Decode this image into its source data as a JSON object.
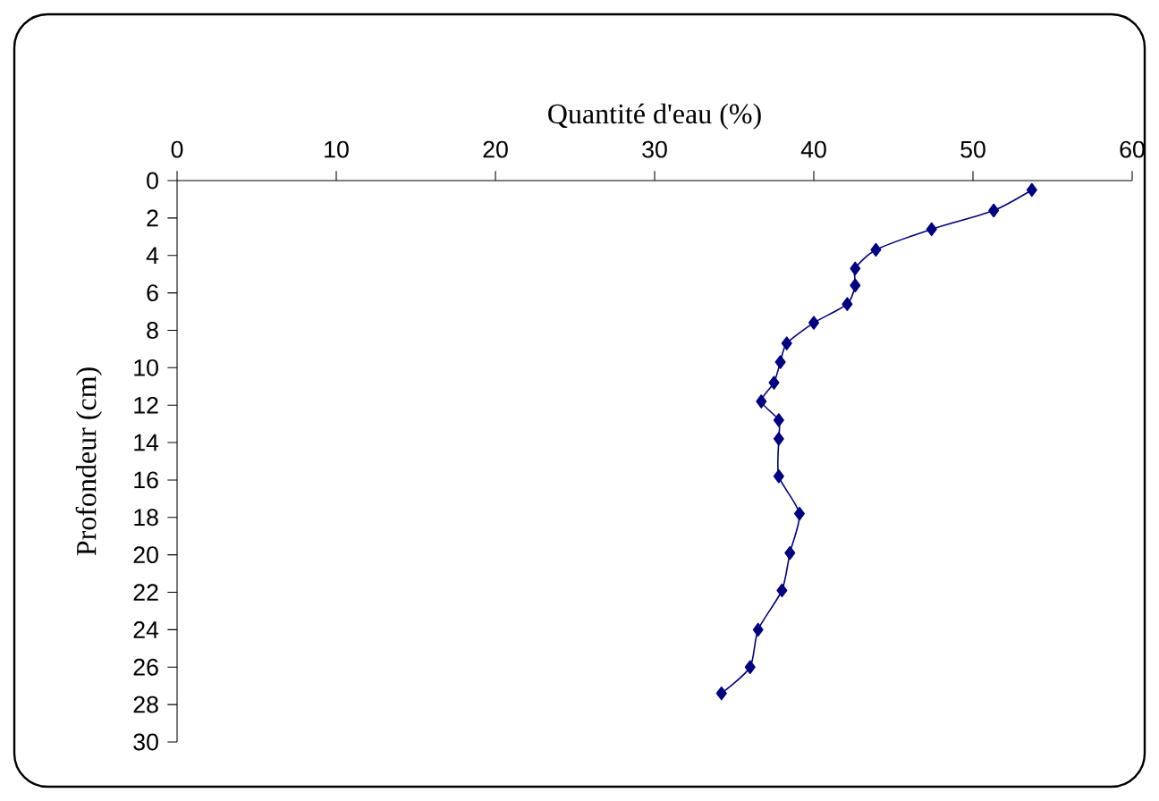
{
  "chart_data": {
    "type": "line",
    "xlabel": "Quantité d'eau (%)",
    "ylabel": "Profondeur (cm)",
    "series": [
      {
        "color": "#000080",
        "x": [
          53.7,
          51.3,
          47.4,
          43.9,
          42.6,
          42.6,
          42.1,
          40.0,
          38.3,
          37.9,
          37.5,
          36.7,
          37.8,
          37.8,
          37.8,
          39.1,
          38.5,
          38.0,
          36.5,
          36.0,
          34.2
        ],
        "values": [
          0.5,
          1.6,
          2.6,
          3.7,
          4.7,
          5.6,
          6.6,
          7.6,
          8.7,
          9.7,
          10.8,
          11.8,
          12.8,
          13.8,
          15.8,
          17.8,
          19.9,
          21.9,
          24.0,
          26.0,
          27.4
        ]
      }
    ],
    "xlim": [
      0,
      60
    ],
    "xticks": [
      0,
      10,
      20,
      30,
      40,
      50,
      60
    ],
    "ylim": [
      30,
      0
    ],
    "yticks": [
      0,
      2,
      4,
      6,
      8,
      10,
      12,
      14,
      16,
      18,
      20,
      22,
      24,
      26,
      28,
      30
    ],
    "marker": "diamond",
    "line_style": "solid"
  }
}
